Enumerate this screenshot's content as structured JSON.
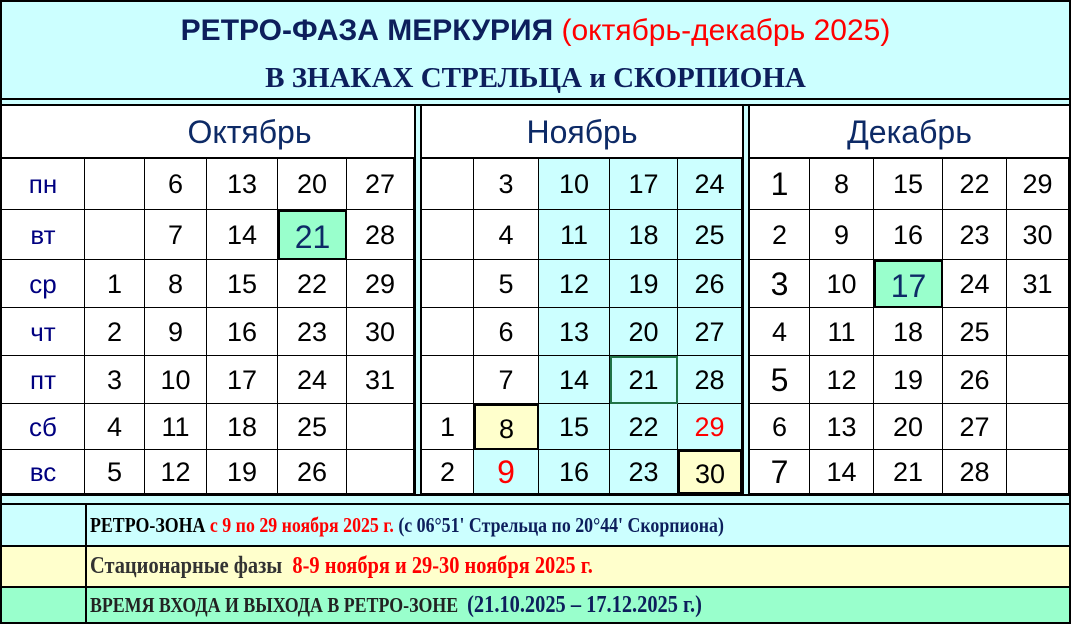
{
  "header": {
    "title_main": "РЕТРО-ФАЗА МЕРКУРИЯ",
    "title_period": "(октябрь-декабрь 2025)",
    "subtitle": "В ЗНАКАХ СТРЕЛЬЦА и СКОРПИОНА"
  },
  "colors": {
    "title": "#0d1f5c",
    "highlight_red": "#ff0000",
    "retro_zone": "#ccffff",
    "stationary": "#ffffcc",
    "entry_exit": "#99ffcc"
  },
  "weekdays": [
    "пн",
    "вт",
    "ср",
    "чт",
    "пт",
    "сб",
    "вс"
  ],
  "months": [
    {
      "name": "Октябрь",
      "weeks": [
        [
          {
            "d": ""
          },
          {
            "d": ""
          },
          {
            "d": "1"
          },
          {
            "d": "2"
          },
          {
            "d": "3"
          },
          {
            "d": "4"
          },
          {
            "d": "5"
          }
        ],
        [
          {
            "d": "6"
          },
          {
            "d": "7"
          },
          {
            "d": "8"
          },
          {
            "d": "9"
          },
          {
            "d": "10"
          },
          {
            "d": "11"
          },
          {
            "d": "12"
          }
        ],
        [
          {
            "d": "13"
          },
          {
            "d": "14"
          },
          {
            "d": "15"
          },
          {
            "d": "16"
          },
          {
            "d": "17"
          },
          {
            "d": "18"
          },
          {
            "d": "19"
          }
        ],
        [
          {
            "d": "20"
          },
          {
            "d": "21",
            "bg": "entry_exit",
            "big": true
          },
          {
            "d": "22"
          },
          {
            "d": "23"
          },
          {
            "d": "24"
          },
          {
            "d": "25"
          },
          {
            "d": "26"
          }
        ],
        [
          {
            "d": "27"
          },
          {
            "d": "28"
          },
          {
            "d": "29"
          },
          {
            "d": "30"
          },
          {
            "d": "31"
          },
          {
            "d": ""
          },
          {
            "d": ""
          }
        ]
      ]
    },
    {
      "name": "Ноябрь",
      "weeks": [
        [
          {
            "d": ""
          },
          {
            "d": ""
          },
          {
            "d": ""
          },
          {
            "d": ""
          },
          {
            "d": ""
          },
          {
            "d": "1"
          },
          {
            "d": "2"
          }
        ],
        [
          {
            "d": "3"
          },
          {
            "d": "4"
          },
          {
            "d": "5"
          },
          {
            "d": "6"
          },
          {
            "d": "7"
          },
          {
            "d": "8",
            "bg": "stationary"
          },
          {
            "d": "9",
            "bg": "retro_zone",
            "red": true,
            "big": true
          }
        ],
        [
          {
            "d": "10",
            "bg": "retro_zone"
          },
          {
            "d": "11",
            "bg": "retro_zone"
          },
          {
            "d": "12",
            "bg": "retro_zone"
          },
          {
            "d": "13",
            "bg": "retro_zone"
          },
          {
            "d": "14",
            "bg": "retro_zone"
          },
          {
            "d": "15",
            "bg": "retro_zone"
          },
          {
            "d": "16",
            "bg": "retro_zone"
          }
        ],
        [
          {
            "d": "17",
            "bg": "retro_zone"
          },
          {
            "d": "18",
            "bg": "retro_zone"
          },
          {
            "d": "19",
            "bg": "retro_zone"
          },
          {
            "d": "20",
            "bg": "retro_zone"
          },
          {
            "d": "21",
            "bg": "retro_zone",
            "selected": true
          },
          {
            "d": "22",
            "bg": "retro_zone"
          },
          {
            "d": "23",
            "bg": "retro_zone"
          }
        ],
        [
          {
            "d": "24",
            "bg": "retro_zone"
          },
          {
            "d": "25",
            "bg": "retro_zone"
          },
          {
            "d": "26",
            "bg": "retro_zone"
          },
          {
            "d": "27",
            "bg": "retro_zone"
          },
          {
            "d": "28",
            "bg": "retro_zone"
          },
          {
            "d": "29",
            "bg": "retro_zone",
            "red": true
          },
          {
            "d": "30",
            "bg": "stationary"
          }
        ]
      ]
    },
    {
      "name": "Декабрь",
      "weeks": [
        [
          {
            "d": "1",
            "big": true
          },
          {
            "d": "2"
          },
          {
            "d": "3",
            "big": true
          },
          {
            "d": "4"
          },
          {
            "d": "5",
            "big": true
          },
          {
            "d": "6"
          },
          {
            "d": "7",
            "big": true
          }
        ],
        [
          {
            "d": "8"
          },
          {
            "d": "9"
          },
          {
            "d": "10"
          },
          {
            "d": "11"
          },
          {
            "d": "12"
          },
          {
            "d": "13"
          },
          {
            "d": "14"
          }
        ],
        [
          {
            "d": "15"
          },
          {
            "d": "16"
          },
          {
            "d": "17",
            "bg": "entry_exit",
            "big": true
          },
          {
            "d": "18"
          },
          {
            "d": "19"
          },
          {
            "d": "20"
          },
          {
            "d": "21"
          }
        ],
        [
          {
            "d": "22"
          },
          {
            "d": "23"
          },
          {
            "d": "24"
          },
          {
            "d": "25"
          },
          {
            "d": "26"
          },
          {
            "d": "27"
          },
          {
            "d": "28"
          }
        ],
        [
          {
            "d": "29"
          },
          {
            "d": "30"
          },
          {
            "d": "31"
          },
          {
            "d": ""
          },
          {
            "d": ""
          },
          {
            "d": ""
          },
          {
            "d": ""
          }
        ]
      ]
    }
  ],
  "legend": {
    "retro": {
      "label": "РЕТРО-ЗОНА",
      "dates": "с 9 по 29 ноября 2025 г.",
      "degrees": "(с 06°51' Стрельца по 20°44' Скорпиона)"
    },
    "stationary": {
      "label": "Стационарные фазы",
      "dates": "8-9 ноября и 29-30 ноября 2025 г."
    },
    "entry_exit": {
      "label": "ВРЕМЯ ВХОДА И ВЫХОДА В РЕТРО-ЗОНЕ",
      "dates": "(21.10.2025 – 17.12.2025 г.)"
    }
  }
}
